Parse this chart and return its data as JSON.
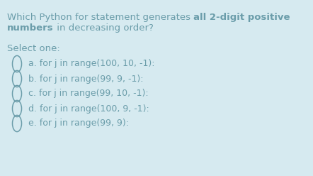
{
  "background_color": "#d6eaf0",
  "text_color": "#6b9daa",
  "title_normal_1": "Which Python for statement generates ",
  "title_bold_1": "all 2-digit positive",
  "title_bold_2": "numbers",
  "title_normal_2": " in decreasing order?",
  "select_label": "Select one:",
  "options": [
    {
      "key": "a",
      "text": "for j in range(100, 10, -1):"
    },
    {
      "key": "b",
      "text": "for j in range(99, 9, -1):"
    },
    {
      "key": "c",
      "text": "for j in range(99, 10, -1):"
    },
    {
      "key": "d",
      "text": "for j in range(100, 9, -1):"
    },
    {
      "key": "e",
      "text": "for j in range(99, 9):"
    }
  ],
  "font_size_title": 9.5,
  "font_size_options": 9.0,
  "font_size_select": 9.5,
  "figsize": [
    4.42,
    2.48
  ],
  "dpi": 100
}
